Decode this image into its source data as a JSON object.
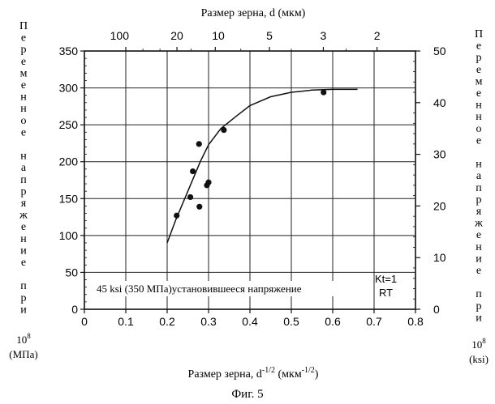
{
  "chart_data": {
    "type": "scatter",
    "title_top": "Размер зерна, d (мкм)",
    "xlabel": "Размер зерна, d",
    "xlabel_sup": "-1/2",
    "xlabel_unit_open": " (мкм",
    "xlabel_unit_close": ")",
    "figure_caption": "Фиг. 5",
    "ylabel_left_chars": [
      "П",
      "е",
      "р",
      "е",
      "м",
      "е",
      "н",
      "н",
      "о",
      "е",
      "",
      "н",
      "а",
      "п",
      "р",
      "я",
      "ж",
      "е",
      "н",
      "и",
      "е",
      "",
      "п",
      "р",
      "и"
    ],
    "ylabel_left_multiplier": "10",
    "ylabel_left_multiplier_exp": "8",
    "ylabel_left_unit": "(МПа)",
    "ylabel_right_chars": [
      "П",
      "е",
      "р",
      "е",
      "м",
      "е",
      "н",
      "н",
      "о",
      "е",
      "",
      "н",
      "а",
      "п",
      "р",
      "я",
      "ж",
      "е",
      "н",
      "и",
      "е",
      "",
      "п",
      "р",
      "и"
    ],
    "ylabel_right_multiplier": "10",
    "ylabel_right_multiplier_exp": "8",
    "ylabel_right_unit": "(ksi)",
    "xlim": [
      0,
      0.8
    ],
    "ylim": [
      0,
      350
    ],
    "y2lim": [
      0,
      50
    ],
    "x_ticks": [
      "0",
      "0.1",
      "0.2",
      "0.3",
      "0.4",
      "0.5",
      "0.6",
      "0.7",
      "0.8"
    ],
    "x_tick_values": [
      0,
      0.1,
      0.2,
      0.3,
      0.4,
      0.5,
      0.6,
      0.7,
      0.8
    ],
    "y_ticks": [
      "0",
      "50",
      "100",
      "150",
      "200",
      "250",
      "300",
      "350"
    ],
    "y_tick_values": [
      0,
      50,
      100,
      150,
      200,
      250,
      300,
      350
    ],
    "y2_ticks": [
      "0",
      "10",
      "20",
      "30",
      "40",
      "50"
    ],
    "y2_tick_values": [
      0,
      10,
      20,
      30,
      40,
      50
    ],
    "top_ticks": [
      "100",
      "20",
      "10",
      "5",
      "3",
      "2"
    ],
    "top_tick_d_values": [
      100,
      20,
      10,
      5,
      3,
      2
    ],
    "top_label_anchor": [
      "end",
      "middle",
      "start",
      "middle",
      "middle",
      "middle"
    ],
    "grid": true,
    "points": [
      {
        "x": 0.223,
        "y": 127
      },
      {
        "x": 0.256,
        "y": 152
      },
      {
        "x": 0.262,
        "y": 187
      },
      {
        "x": 0.277,
        "y": 224
      },
      {
        "x": 0.278,
        "y": 139
      },
      {
        "x": 0.296,
        "y": 168
      },
      {
        "x": 0.3,
        "y": 172
      },
      {
        "x": 0.337,
        "y": 243
      },
      {
        "x": 0.578,
        "y": 294
      }
    ],
    "fit_curve": [
      {
        "x": 0.2,
        "y": 90
      },
      {
        "x": 0.22,
        "y": 120
      },
      {
        "x": 0.25,
        "y": 160
      },
      {
        "x": 0.28,
        "y": 200
      },
      {
        "x": 0.3,
        "y": 223
      },
      {
        "x": 0.33,
        "y": 245
      },
      {
        "x": 0.37,
        "y": 263
      },
      {
        "x": 0.4,
        "y": 276
      },
      {
        "x": 0.45,
        "y": 288
      },
      {
        "x": 0.5,
        "y": 294
      },
      {
        "x": 0.55,
        "y": 297
      },
      {
        "x": 0.6,
        "y": 298
      },
      {
        "x": 0.66,
        "y": 298
      }
    ],
    "annotations": {
      "stress_note": "45 ksi (350 МПа)установившееся напряжение",
      "kt": "Kt=1",
      "rt": "RT"
    }
  }
}
